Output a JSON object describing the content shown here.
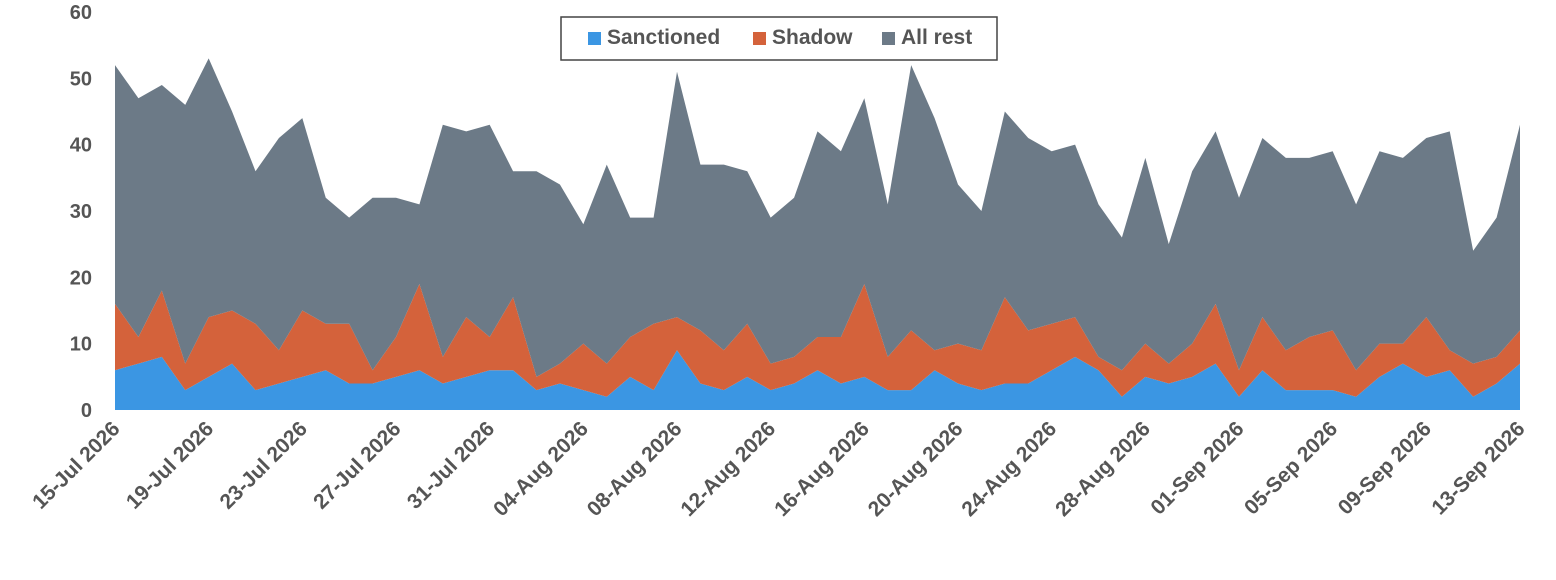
{
  "chart_data": {
    "type": "area",
    "stacked": true,
    "x": [
      "15-Jul 2026",
      "16-Jul 2026",
      "17-Jul 2026",
      "18-Jul 2026",
      "19-Jul 2026",
      "20-Jul 2026",
      "21-Jul 2026",
      "22-Jul 2026",
      "23-Jul 2026",
      "24-Jul 2026",
      "25-Jul 2026",
      "26-Jul 2026",
      "27-Jul 2026",
      "28-Jul 2026",
      "29-Jul 2026",
      "30-Jul 2026",
      "31-Jul 2026",
      "01-Aug 2026",
      "02-Aug 2026",
      "03-Aug 2026",
      "04-Aug 2026",
      "05-Aug 2026",
      "06-Aug 2026",
      "07-Aug 2026",
      "08-Aug 2026",
      "09-Aug 2026",
      "10-Aug 2026",
      "11-Aug 2026",
      "12-Aug 2026",
      "13-Aug 2026",
      "14-Aug 2026",
      "15-Aug 2026",
      "16-Aug 2026",
      "17-Aug 2026",
      "18-Aug 2026",
      "19-Aug 2026",
      "20-Aug 2026",
      "21-Aug 2026",
      "22-Aug 2026",
      "23-Aug 2026",
      "24-Aug 2026",
      "25-Aug 2026",
      "26-Aug 2026",
      "27-Aug 2026",
      "28-Aug 2026",
      "29-Aug 2026",
      "30-Aug 2026",
      "31-Aug 2026",
      "01-Sep 2026",
      "02-Sep 2026",
      "03-Sep 2026",
      "04-Sep 2026",
      "05-Sep 2026",
      "06-Sep 2026",
      "07-Sep 2026",
      "08-Sep 2026",
      "09-Sep 2026",
      "10-Sep 2026",
      "11-Sep 2026",
      "12-Sep 2026",
      "13-Sep 2026"
    ],
    "x_tick_labels": [
      "15-Jul 2026",
      "19-Jul 2026",
      "23-Jul 2026",
      "27-Jul 2026",
      "31-Jul 2026",
      "04-Aug 2026",
      "08-Aug 2026",
      "12-Aug 2026",
      "16-Aug 2026",
      "20-Aug 2026",
      "24-Aug 2026",
      "28-Aug 2026",
      "01-Sep 2026",
      "05-Sep 2026",
      "09-Sep 2026",
      "13-Sep 2026"
    ],
    "series": [
      {
        "name": "Sanctioned",
        "color": "#3b96e3",
        "values": [
          6,
          7,
          8,
          3,
          5,
          7,
          3,
          4,
          5,
          6,
          4,
          4,
          5,
          6,
          4,
          5,
          6,
          6,
          3,
          4,
          3,
          2,
          5,
          3,
          9,
          4,
          3,
          5,
          3,
          4,
          6,
          4,
          5,
          3,
          3,
          6,
          4,
          3,
          4,
          4,
          6,
          8,
          6,
          2,
          5,
          4,
          5,
          7,
          2,
          6,
          3,
          3,
          3,
          2,
          5,
          7,
          5,
          6,
          2,
          4,
          7
        ]
      },
      {
        "name": "Shadow",
        "color": "#d4623b",
        "values": [
          10,
          4,
          10,
          4,
          9,
          8,
          10,
          5,
          10,
          7,
          9,
          2,
          6,
          13,
          4,
          9,
          5,
          11,
          2,
          3,
          7,
          5,
          6,
          10,
          5,
          8,
          6,
          8,
          4,
          4,
          5,
          7,
          14,
          5,
          9,
          3,
          6,
          6,
          13,
          8,
          7,
          6,
          2,
          4,
          5,
          3,
          5,
          9,
          4,
          8,
          6,
          8,
          9,
          4,
          5,
          3,
          9,
          3,
          5,
          4,
          5
        ]
      },
      {
        "name": "All rest",
        "color": "#6c7a87",
        "values": [
          36,
          36,
          31,
          39,
          39,
          30,
          23,
          32,
          29,
          19,
          16,
          26,
          21,
          12,
          35,
          28,
          32,
          19,
          31,
          27,
          18,
          30,
          18,
          16,
          37,
          25,
          28,
          23,
          22,
          24,
          31,
          28,
          28,
          23,
          40,
          35,
          24,
          21,
          28,
          29,
          26,
          26,
          23,
          20,
          28,
          18,
          26,
          26,
          26,
          27,
          29,
          27,
          27,
          25,
          29,
          28,
          27,
          33,
          17,
          21,
          31
        ]
      }
    ],
    "ylim": [
      0,
      60
    ],
    "y_ticks": [
      0,
      10,
      20,
      30,
      40,
      50,
      60
    ],
    "grid": false,
    "legend": "top-center"
  }
}
